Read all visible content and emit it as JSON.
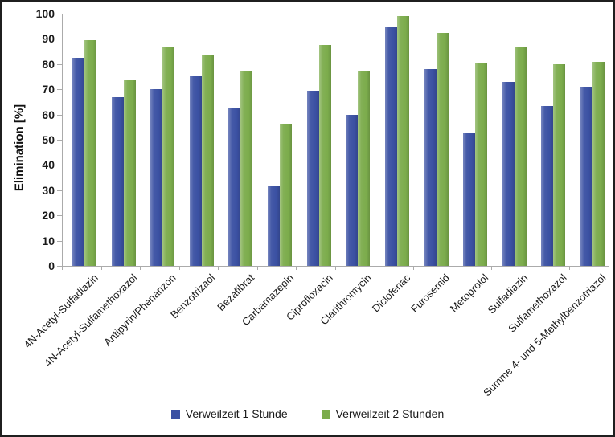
{
  "chart_data": {
    "type": "bar",
    "title": "",
    "ylabel": "Elimination [%]",
    "xlabel": "",
    "ylim": [
      0,
      100
    ],
    "ytick_step": 10,
    "grid": false,
    "legend_position": "bottom-center",
    "categories": [
      "4N-Acetyl-Sulfadiazin",
      "4N-Acetyl-Sulfamethoxazol",
      "Antipyrin/Phenanzon",
      "Benzotrizaol",
      "Bezafibrat",
      "Carbamazepin",
      "Ciprofloxacin",
      "Clarithromycin",
      "Diclofenac",
      "Furosemid",
      "Metoprolol",
      "Sulfadiazin",
      "Sulfamethoxazol",
      "Summe 4- und 5-Methylbenzotriazol"
    ],
    "series": [
      {
        "name": "Verweilzeit 1 Stunde",
        "color": "#3B51A3",
        "values": [
          82.5,
          67,
          70,
          75.5,
          62.5,
          31.5,
          69.5,
          60,
          94.5,
          78,
          52.5,
          73,
          63.5,
          71
        ]
      },
      {
        "name": "Verweilzeit 2 Stunden",
        "color": "#7CAC4C",
        "values": [
          89.5,
          73.5,
          87,
          83.5,
          77,
          56.5,
          87.5,
          77.5,
          99,
          92.5,
          80.5,
          87,
          80,
          81
        ]
      }
    ]
  },
  "colors": {
    "axis": "#ABABAB",
    "text": "#1A1A1A",
    "figure_border": "#1F1F1F",
    "background": "#FFFFFF"
  }
}
